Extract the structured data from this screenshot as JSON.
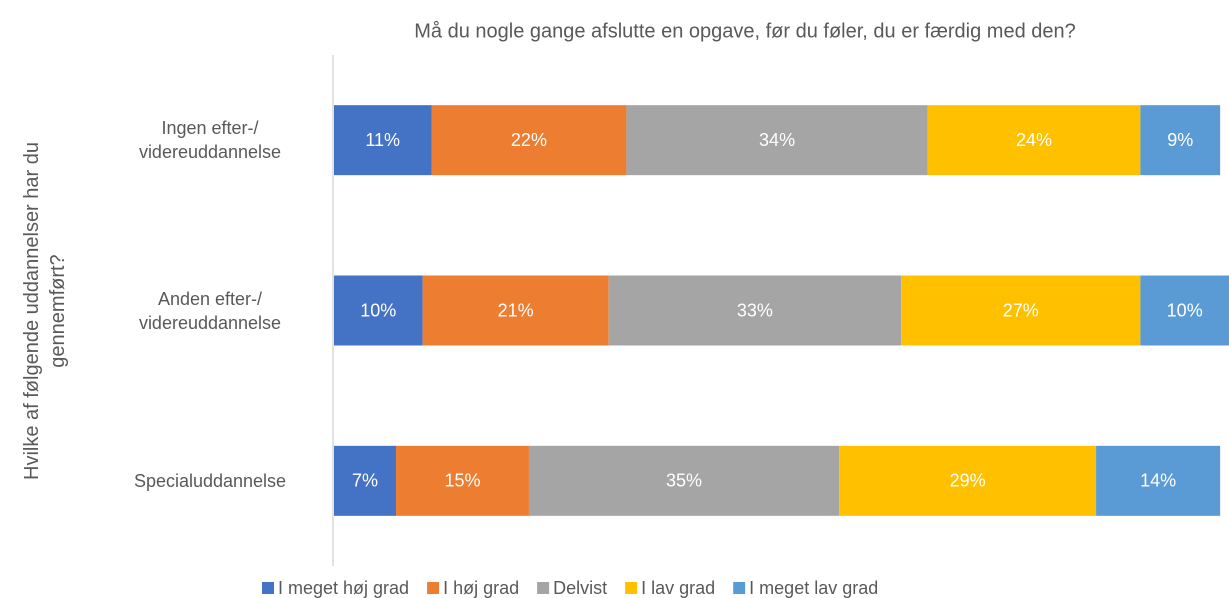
{
  "chart_data": {
    "type": "stacked_bar_horizontal",
    "title": "Må du nogle gange afslutte en opgave, før du føler, du er færdig med den?",
    "y_label": "Hvilke af følgende uddannelser har du gennemført?",
    "categories": [
      "Ingen efter-/ videreuddannelse",
      "Anden efter-/ videreuddannelse",
      "Specialuddannelse"
    ],
    "series": [
      {
        "name": "I meget høj grad",
        "color": "#4472c4",
        "values": [
          11,
          10,
          7
        ],
        "value_labels": [
          "11%",
          "10%",
          "7%"
        ]
      },
      {
        "name": "I høj grad",
        "color": "#ed7d31",
        "values": [
          22,
          21,
          15
        ],
        "value_labels": [
          "22%",
          "21%",
          "15%"
        ]
      },
      {
        "name": "Delvist",
        "color": "#a5a5a5",
        "values": [
          34,
          33,
          35
        ],
        "value_labels": [
          "34%",
          "33%",
          "35%"
        ]
      },
      {
        "name": "I lav grad",
        "color": "#ffc000",
        "values": [
          24,
          27,
          29
        ],
        "value_labels": [
          "24%",
          "27%",
          "29%"
        ]
      },
      {
        "name": "I meget lav grad",
        "color": "#5b9bd5",
        "values": [
          9,
          10,
          14
        ],
        "value_labels": [
          "9%",
          "10%",
          "14%"
        ]
      }
    ],
    "legend": "bottom"
  }
}
